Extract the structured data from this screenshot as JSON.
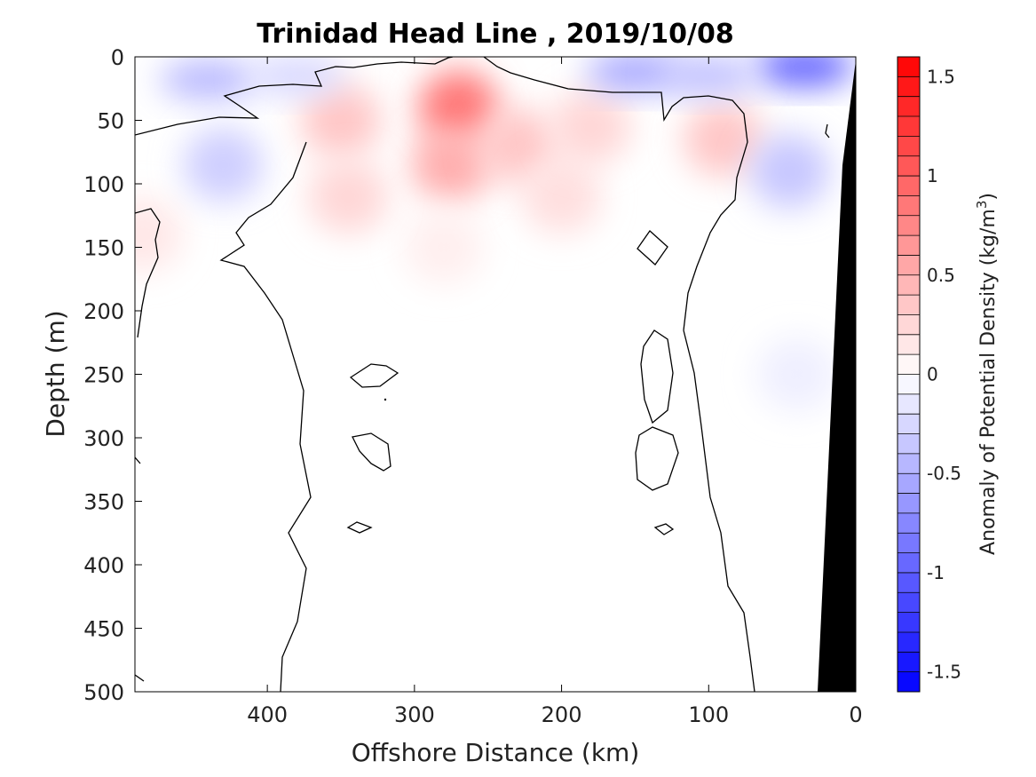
{
  "chart_data": {
    "type": "heatmap",
    "title": "Trinidad Head Line , 2019/10/08",
    "xlabel": "Offshore Distance (km)",
    "ylabel": "Depth (m)",
    "xlim": [
      490,
      0
    ],
    "ylim": [
      0,
      500
    ],
    "x_reversed": true,
    "y_reversed": true,
    "x_ticks": [
      "400",
      "300",
      "200",
      "100",
      "0"
    ],
    "x_tick_values": [
      400,
      300,
      200,
      100,
      0
    ],
    "y_ticks": [
      "0",
      "50",
      "100",
      "150",
      "200",
      "250",
      "300",
      "350",
      "400",
      "450",
      "500"
    ],
    "y_tick_values": [
      0,
      50,
      100,
      150,
      200,
      250,
      300,
      350,
      400,
      450,
      500
    ],
    "colorbar": {
      "label": "Anomaly of Potential Density (kg/m",
      "label_superscript": "3",
      "label_close": ")",
      "range": [
        -1.6,
        1.6
      ],
      "levels": 32,
      "ticks": [
        "1.5",
        "1",
        "0.5",
        "0",
        "-0.5",
        "-1",
        "-1.5"
      ],
      "tick_values": [
        1.5,
        1,
        0.5,
        0,
        -0.5,
        -1,
        -1.5
      ],
      "negative_color": "#0000ff",
      "positive_color": "#ff0000",
      "zero_color": "#ffffff"
    },
    "anomaly_features": [
      {
        "kind": "positive",
        "x": 270,
        "y": 40,
        "value": 0.85
      },
      {
        "kind": "positive",
        "x": 275,
        "y": 85,
        "value": 0.5
      },
      {
        "kind": "positive",
        "x": 230,
        "y": 70,
        "value": 0.35
      },
      {
        "kind": "positive",
        "x": 200,
        "y": 110,
        "value": 0.2
      },
      {
        "kind": "positive",
        "x": 280,
        "y": 150,
        "value": 0.1
      },
      {
        "kind": "positive",
        "x": 350,
        "y": 50,
        "value": 0.35
      },
      {
        "kind": "positive",
        "x": 345,
        "y": 110,
        "value": 0.25
      },
      {
        "kind": "positive",
        "x": 180,
        "y": 55,
        "value": 0.25
      },
      {
        "kind": "positive",
        "x": 90,
        "y": 65,
        "value": 0.35
      },
      {
        "kind": "positive",
        "x": 485,
        "y": 140,
        "value": 0.15
      },
      {
        "kind": "negative",
        "x": 440,
        "y": 18,
        "value": -0.45
      },
      {
        "kind": "negative",
        "x": 380,
        "y": 15,
        "value": -0.25
      },
      {
        "kind": "negative",
        "x": 430,
        "y": 85,
        "value": -0.3
      },
      {
        "kind": "negative",
        "x": 150,
        "y": 12,
        "value": -0.55
      },
      {
        "kind": "negative",
        "x": 35,
        "y": 8,
        "value": -1.0
      },
      {
        "kind": "negative",
        "x": 100,
        "y": 15,
        "value": -0.4
      },
      {
        "kind": "negative",
        "x": 45,
        "y": 90,
        "value": -0.35
      },
      {
        "kind": "negative",
        "x": 40,
        "y": 250,
        "value": -0.1
      }
    ],
    "land_color": "#000000"
  }
}
